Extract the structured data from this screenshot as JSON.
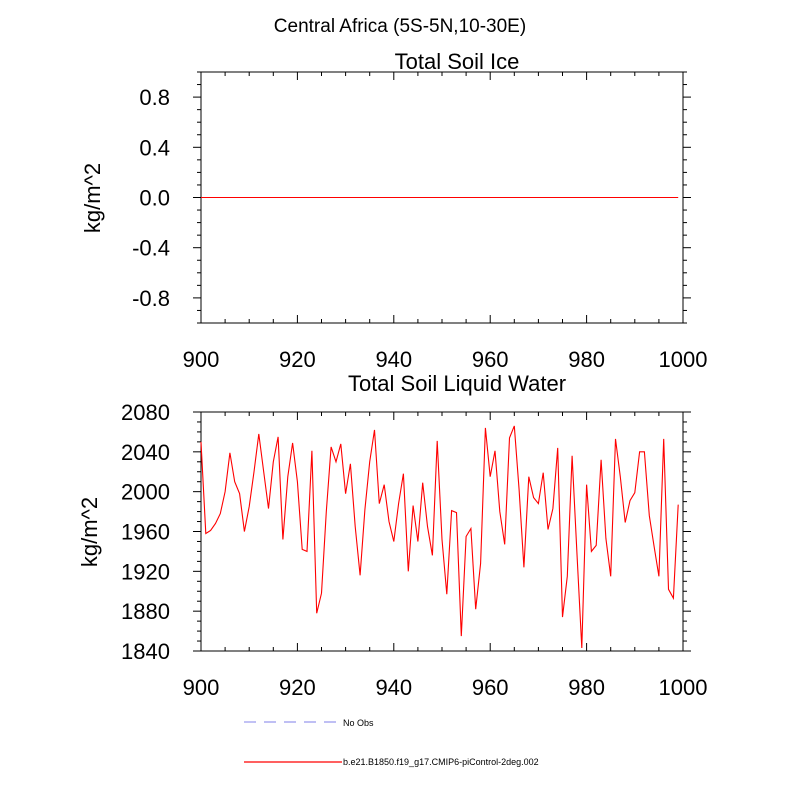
{
  "figure_title": "Central Africa (5S-5N,10-30E)",
  "chart_data": [
    {
      "type": "line",
      "title": "Total Soil Ice",
      "xlabel": "",
      "ylabel": "kg/m^2",
      "xlim": [
        900,
        1000
      ],
      "ylim": [
        -1.0,
        1.0
      ],
      "x_ticks": [
        "900",
        "920",
        "940",
        "960",
        "980",
        "1000"
      ],
      "y_ticks": [
        "0.8",
        "0.4",
        "0.0",
        "-0.4",
        "-0.8"
      ],
      "series": [
        {
          "name": "b.e21.B1850.f19_g17.CMIP6-piControl-2deg.002",
          "color": "#ff0000",
          "x_start": 900,
          "x_step": 1,
          "values": [
            0,
            0,
            0,
            0,
            0,
            0,
            0,
            0,
            0,
            0,
            0,
            0,
            0,
            0,
            0,
            0,
            0,
            0,
            0,
            0,
            0,
            0,
            0,
            0,
            0,
            0,
            0,
            0,
            0,
            0,
            0,
            0,
            0,
            0,
            0,
            0,
            0,
            0,
            0,
            0,
            0,
            0,
            0,
            0,
            0,
            0,
            0,
            0,
            0,
            0,
            0,
            0,
            0,
            0,
            0,
            0,
            0,
            0,
            0,
            0,
            0,
            0,
            0,
            0,
            0,
            0,
            0,
            0,
            0,
            0,
            0,
            0,
            0,
            0,
            0,
            0,
            0,
            0,
            0,
            0,
            0,
            0,
            0,
            0,
            0,
            0,
            0,
            0,
            0,
            0,
            0,
            0,
            0,
            0,
            0,
            0,
            0,
            0,
            0,
            0
          ]
        }
      ]
    },
    {
      "type": "line",
      "title": "Total Soil Liquid Water",
      "xlabel": "",
      "ylabel": "kg/m^2",
      "xlim": [
        900,
        1000
      ],
      "ylim": [
        1840,
        2080
      ],
      "x_ticks": [
        "900",
        "920",
        "940",
        "960",
        "980",
        "1000"
      ],
      "y_ticks": [
        "2080",
        "2040",
        "2000",
        "1960",
        "1920",
        "1880",
        "1840"
      ],
      "series": [
        {
          "name": "b.e21.B1850.f19_g17.CMIP6-piControl-2deg.002",
          "color": "#ff0000",
          "x_start": 900,
          "x_step": 1,
          "values": [
            2050,
            1958,
            1961,
            1968,
            1978,
            2000,
            2039,
            2010,
            1998,
            1960,
            1985,
            2020,
            2058,
            2020,
            1983,
            2030,
            2055,
            1952,
            2015,
            2049,
            2010,
            1942,
            1940,
            2041,
            1878,
            1898,
            1980,
            2045,
            2030,
            2048,
            1998,
            2028,
            1965,
            1916,
            1982,
            2030,
            2062,
            1988,
            2007,
            1970,
            1950,
            1988,
            2018,
            1920,
            1986,
            1950,
            2009,
            1965,
            1936,
            2051,
            1952,
            1897,
            1981,
            1979,
            1855,
            1955,
            1963,
            1882,
            1928,
            2064,
            2015,
            2041,
            1980,
            1947,
            2054,
            2066,
            2002,
            1924,
            2015,
            1994,
            1988,
            2019,
            1962,
            1983,
            2044,
            1874,
            1915,
            2036,
            1937,
            1843,
            2007,
            1940,
            1946,
            2032,
            1953,
            1915,
            2053,
            2015,
            1969,
            1991,
            1999,
            2040,
            2040,
            1976,
            1945,
            1915,
            2053,
            1902,
            1893,
            1987
          ]
        }
      ]
    }
  ],
  "legend": [
    {
      "label": "No Obs",
      "color": "#9999ee",
      "style": "dashed"
    },
    {
      "label": "b.e21.B1850.f19_g17.CMIP6-piControl-2deg.002",
      "color": "#ff0000",
      "style": "solid"
    }
  ]
}
